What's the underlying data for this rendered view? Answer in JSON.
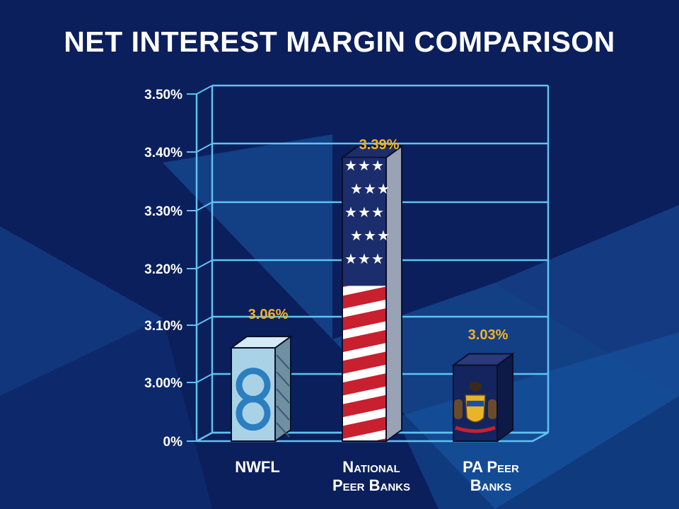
{
  "chart_data": {
    "type": "bar",
    "title": "NET INTEREST MARGIN COMPARISON",
    "categories": [
      "NWFL",
      "National\nPeer Banks",
      "PA Peer\nBanks"
    ],
    "values": [
      3.06,
      3.39,
      3.03
    ],
    "value_labels": [
      "3.06%",
      "3.39%",
      "3.03%"
    ],
    "y_ticks": [
      {
        "value": 0,
        "label": "0%"
      },
      {
        "value": 3.0,
        "label": "3.00%"
      },
      {
        "value": 3.1,
        "label": "3.10%"
      },
      {
        "value": 3.2,
        "label": "3.20%"
      },
      {
        "value": 3.3,
        "label": "3.30%"
      },
      {
        "value": 3.4,
        "label": "3.40%"
      },
      {
        "value": 3.5,
        "label": "3.50%"
      }
    ],
    "y_axis_break": true,
    "ylim": [
      0,
      3.5
    ],
    "xlabel": "",
    "ylabel": "",
    "grid": true,
    "bar_fills": [
      "bank-logo",
      "us-flag",
      "pennsylvania-flag"
    ]
  },
  "colors": {
    "background": "#0b1f5c",
    "grid": "#5fc3f0",
    "value_label": "#f5b320",
    "text": "#ffffff",
    "bar_nwfl": "#a9d2e6",
    "bar_pa": "#13245f"
  }
}
